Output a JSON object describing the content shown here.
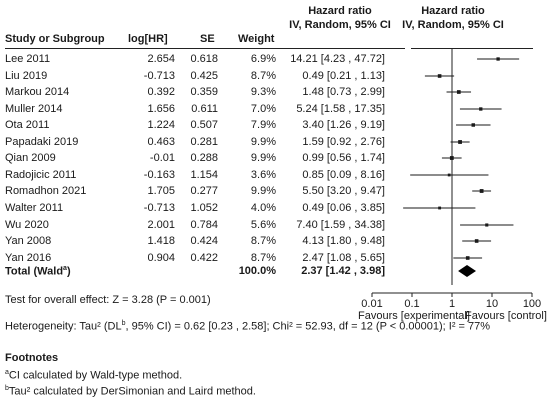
{
  "headers": {
    "study": "Study or Subgroup",
    "loghr": "log[HR]",
    "se": "SE",
    "weight": "Weight",
    "hr_title": "Hazard ratio",
    "hr_sub": "IV, Random, 95% CI",
    "plot_title": "Hazard ratio",
    "plot_sub": "IV, Random, 95% CI"
  },
  "total": {
    "label": "Total (Wald",
    "label_sup": "a",
    "label_close": ")",
    "weight": "100.0%",
    "ci_text": "2.37 [1.42 , 3.98]",
    "hr": 2.37,
    "lo": 1.42,
    "hi": 3.98
  },
  "overall_effect": "Test for overall effect: Z = 3.28 (P = 0.001)",
  "heterogeneity": {
    "part1": "Heterogeneity: Tau² (DL",
    "sup": "b",
    "part2": ", 95% CI) = 0.62 [0.23 , 2.58]; Chi² = 52.93, df = 12 (P < 0.00001); I² = 77%"
  },
  "footnotes": {
    "title": "Footnotes",
    "a_sup": "a",
    "a_text": "CI calculated by Wald-type method.",
    "b_sup": "b",
    "b_text": "Tau² calculated by DerSimonian and Laird method."
  },
  "chart_data": {
    "type": "forest",
    "scale": "log",
    "xlim": [
      0.01,
      100
    ],
    "ticks": [
      0.01,
      0.1,
      1,
      10,
      100
    ],
    "tick_labels": [
      "0.01",
      "0.1",
      "1",
      "10",
      "100"
    ],
    "favours_left": "Favours [experimental]",
    "favours_right": "Favours [control]",
    "studies": [
      {
        "name": "Lee 2011",
        "loghr": "2.654",
        "se": "0.618",
        "weight": "6.9%",
        "ci_text": "14.21 [4.23 , 47.72]",
        "hr": 14.21,
        "lo": 4.23,
        "hi": 47.72
      },
      {
        "name": "Liu 2019",
        "loghr": "-0.713",
        "se": "0.425",
        "weight": "8.7%",
        "ci_text": "0.49 [0.21 , 1.13]",
        "hr": 0.49,
        "lo": 0.21,
        "hi": 1.13
      },
      {
        "name": "Markou 2014",
        "loghr": "0.392",
        "se": "0.359",
        "weight": "9.3%",
        "ci_text": "1.48 [0.73 , 2.99]",
        "hr": 1.48,
        "lo": 0.73,
        "hi": 2.99
      },
      {
        "name": "Muller 2014",
        "loghr": "1.656",
        "se": "0.611",
        "weight": "7.0%",
        "ci_text": "5.24 [1.58 , 17.35]",
        "hr": 5.24,
        "lo": 1.58,
        "hi": 17.35
      },
      {
        "name": "Ota 2011",
        "loghr": "1.224",
        "se": "0.507",
        "weight": "7.9%",
        "ci_text": "3.40 [1.26 , 9.19]",
        "hr": 3.4,
        "lo": 1.26,
        "hi": 9.19
      },
      {
        "name": "Papadaki 2019",
        "loghr": "0.463",
        "se": "0.281",
        "weight": "9.9%",
        "ci_text": "1.59 [0.92 , 2.76]",
        "hr": 1.59,
        "lo": 0.92,
        "hi": 2.76
      },
      {
        "name": "Qian 2009",
        "loghr": "-0.01",
        "se": "0.288",
        "weight": "9.9%",
        "ci_text": "0.99 [0.56 , 1.74]",
        "hr": 0.99,
        "lo": 0.56,
        "hi": 1.74
      },
      {
        "name": "Radojicic 2011",
        "loghr": "-0.163",
        "se": "1.154",
        "weight": "3.6%",
        "ci_text": "0.85 [0.09 , 8.16]",
        "hr": 0.85,
        "lo": 0.09,
        "hi": 8.16
      },
      {
        "name": "Romadhon 2021",
        "loghr": "1.705",
        "se": "0.277",
        "weight": "9.9%",
        "ci_text": "5.50 [3.20 , 9.47]",
        "hr": 5.5,
        "lo": 3.2,
        "hi": 9.47
      },
      {
        "name": "Walter 2011",
        "loghr": "-0.713",
        "se": "1.052",
        "weight": "4.0%",
        "ci_text": "0.49 [0.06 , 3.85]",
        "hr": 0.49,
        "lo": 0.06,
        "hi": 3.85
      },
      {
        "name": "Wu 2020",
        "loghr": "2.001",
        "se": "0.784",
        "weight": "5.6%",
        "ci_text": "7.40 [1.59 , 34.38]",
        "hr": 7.4,
        "lo": 1.59,
        "hi": 34.38
      },
      {
        "name": "Yan 2008",
        "loghr": "1.418",
        "se": "0.424",
        "weight": "8.7%",
        "ci_text": "4.13 [1.80 , 9.48]",
        "hr": 4.13,
        "lo": 1.8,
        "hi": 9.48
      },
      {
        "name": "Yan 2016",
        "loghr": "0.904",
        "se": "0.422",
        "weight": "8.7%",
        "ci_text": "2.47 [1.08 , 5.65]",
        "hr": 2.47,
        "lo": 1.08,
        "hi": 5.65
      }
    ]
  }
}
